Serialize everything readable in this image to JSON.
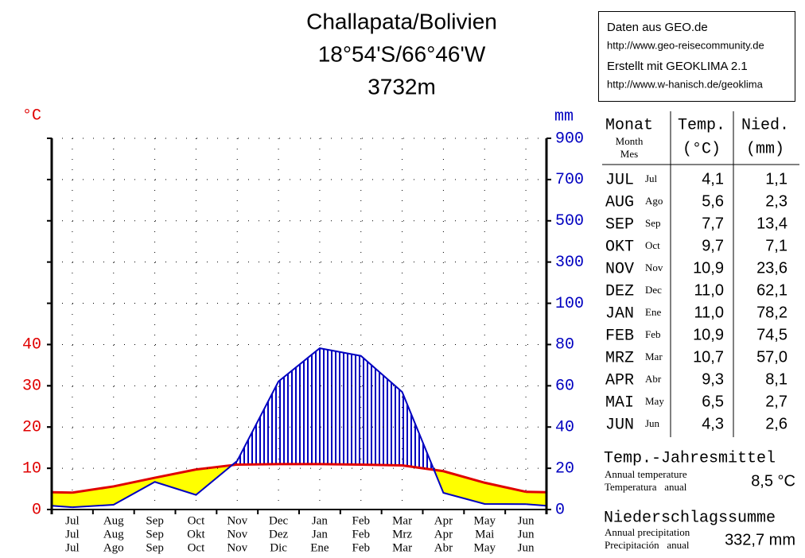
{
  "chart_data": {
    "type": "climate",
    "title": "Challapata/Bolivien",
    "subtitle": "18°54'S/66°46'W",
    "elevation": "3732m",
    "y_label": "°C",
    "y2_label": "mm",
    "categories": [
      "Jul",
      "Aug",
      "Sep",
      "Oct",
      "Nov",
      "Dec",
      "Jan",
      "Feb",
      "Mar",
      "Apr",
      "May",
      "Jun"
    ],
    "categories_de": [
      "Jul",
      "Aug",
      "Sep",
      "Okt",
      "Nov",
      "Dez",
      "Jan",
      "Feb",
      "Mrz",
      "Apr",
      "Mai",
      "Jun"
    ],
    "categories_es": [
      "Jul",
      "Ago",
      "Sep",
      "Oct",
      "Nov",
      "Dic",
      "Ene",
      "Feb",
      "Mar",
      "Abr",
      "May",
      "Jun"
    ],
    "series": [
      {
        "color": "#e00000",
        "values": [
          4.1,
          5.6,
          7.7,
          9.7,
          10.9,
          11.0,
          11.0,
          10.9,
          10.7,
          9.3,
          6.5,
          4.3
        ],
        "value_labels": [
          "4,1",
          "5,6",
          "7,7",
          "9,7",
          "10,9",
          "11,0",
          "11,0",
          "10,9",
          "10,7",
          "9,3",
          "6,5",
          "4,3"
        ]
      },
      {
        "color": "#0000c0",
        "axis": "y2",
        "values": [
          1.1,
          2.3,
          13.4,
          7.1,
          23.6,
          62.1,
          78.2,
          74.5,
          57.0,
          8.1,
          2.7,
          2.6
        ],
        "value_labels": [
          "1,1",
          "2,3",
          "13,4",
          "7,1",
          "23,6",
          "62,1",
          "78,2",
          "74,5",
          "57,0",
          "8,1",
          "2,7",
          "2,6"
        ]
      }
    ],
    "dry_color": "#ffff00",
    "ylim": [
      0,
      90
    ],
    "yticks": [
      0,
      10,
      20,
      30,
      40
    ],
    "y2lim": [
      0,
      900
    ],
    "y2ticks": [
      0,
      20,
      40,
      60,
      80,
      100,
      300,
      500,
      700,
      900
    ],
    "grid": true
  },
  "source_box": [
    "Daten aus GEO.de",
    "http://www.geo-reisecommunity.de",
    "Erstellt mit GEOKLIMA 2.1",
    "http://www.w-hanisch.de/geoklima"
  ],
  "table": {
    "header": {
      "month": "Monat",
      "month_en": "Month",
      "month_es": "Mes",
      "temp": "Temp.",
      "temp_unit": "(°C)",
      "precip": "Nied.",
      "precip_unit": "(mm)"
    },
    "months": [
      "JUL",
      "AUG",
      "SEP",
      "OKT",
      "NOV",
      "DEZ",
      "JAN",
      "FEB",
      "MRZ",
      "APR",
      "MAI",
      "JUN"
    ],
    "months_small": [
      "Jul",
      "Ago",
      "Sep",
      "Oct",
      "Nov",
      "Dec",
      "Ene",
      "Feb",
      "Mar",
      "Abr",
      "May",
      "Jun"
    ]
  },
  "summary": {
    "temp_title": "Temp.-Jahresmittel",
    "temp_en": "Annual temperature",
    "temp_es": "Temperatura   anual",
    "temp_value": "8,5 °C",
    "precip_title": "Niederschlagssumme",
    "precip_en": "Annual precipitation",
    "precip_es": "Precipitación   anual",
    "precip_value": "332,7 mm"
  }
}
